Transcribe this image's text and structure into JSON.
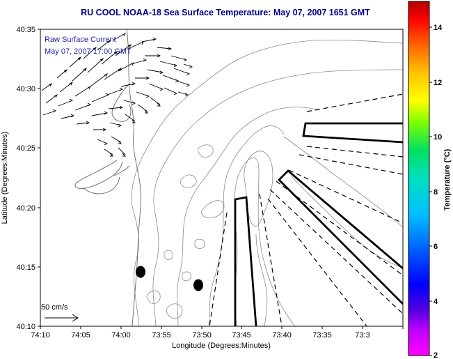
{
  "title": "RU COOL  NOAA-18  Sea Surface Temperature:  May 07, 2007 1651 GMT",
  "annotation_line1": "Raw Surface Current",
  "annotation_line2": "May 07, 2007 17:00 GMT",
  "scale_label": "50 cm/s",
  "xlabel": "Longitude (Degrees:Minutes)",
  "ylabel": "Latitude (Degrees:Minutes)",
  "x_ticks": [
    "74:10",
    "74:05",
    "74:00",
    "73:55",
    "73:50",
    "73:45",
    "73:40",
    "73:35",
    "73:3"
  ],
  "y_ticks": [
    "40:35",
    "40:30",
    "40:25",
    "40:20",
    "40:15",
    "40:10"
  ],
  "colorbar": {
    "label": "Temperature (°C)",
    "ticks": [
      "14",
      "12",
      "10",
      "8",
      "6",
      "4",
      "2"
    ],
    "range": [
      2,
      15
    ]
  },
  "colors": {
    "title": "#00008b",
    "annotation": "#1c1ca8",
    "contour": "#888888",
    "frame": "#000000"
  }
}
